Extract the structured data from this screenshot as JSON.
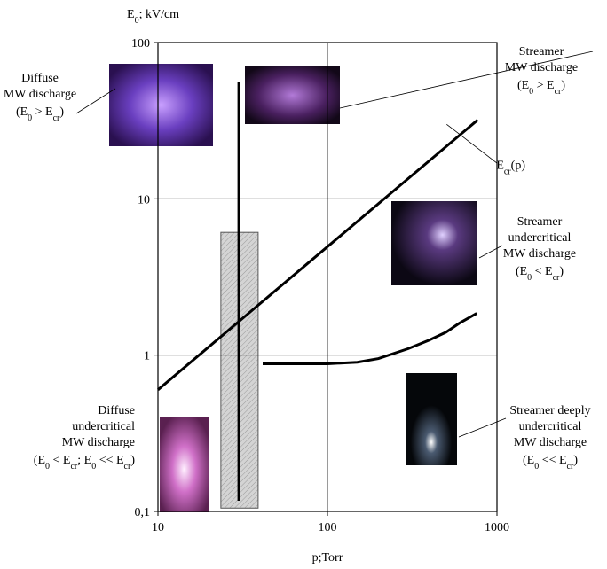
{
  "chart_data": {
    "type": "line",
    "y_label": [
      "E",
      "0",
      "; kV/cm"
    ],
    "x_label": "p;Torr",
    "log_x": true,
    "log_y": true,
    "grid": true,
    "xlim": [
      10,
      1000
    ],
    "ylim": [
      0.1,
      100
    ],
    "xticks": [
      10,
      100,
      1000
    ],
    "yticks": [
      {
        "value": 0.1,
        "label": "0,1"
      },
      1,
      10,
      100
    ],
    "series": [
      {
        "name": [
          "E",
          "cr",
          "(p)"
        ],
        "color": "#000000",
        "x": [
          10,
          770
        ],
        "values": [
          0.6,
          32
        ]
      },
      {
        "color": "#000000",
        "x": [
          30,
          30
        ],
        "values": [
          0.117,
          56
        ]
      },
      {
        "color": "#000000",
        "x": [
          41.5,
          60,
          100,
          150,
          200,
          300,
          400,
          500,
          600,
          760
        ],
        "values": [
          0.88,
          0.88,
          0.88,
          0.9,
          0.95,
          1.1,
          1.25,
          1.4,
          1.6,
          1.85
        ]
      }
    ],
    "shaded_box": {
      "color": "#cfcfcf",
      "x": [
        23.5,
        39
      ],
      "y": [
        0.105,
        6.1
      ]
    },
    "annotations": [
      {
        "lines": [
          [
            "Diffuse"
          ],
          [
            "MW discharge"
          ],
          [
            "(E",
            "0",
            " > E",
            "cr",
            ")"
          ]
        ]
      },
      {
        "lines": [
          [
            "Streamer"
          ],
          [
            "MW discharge"
          ],
          [
            "(E",
            "0",
            " > E",
            "cr",
            ")"
          ]
        ]
      },
      {
        "lines": [
          [
            "Streamer"
          ],
          [
            "undercritical"
          ],
          [
            "MW discharge"
          ],
          [
            "(E",
            "0",
            " < E",
            "cr",
            ")"
          ]
        ]
      },
      {
        "lines": [
          [
            "Streamer deeply"
          ],
          [
            "undercritical"
          ],
          [
            "MW discharge"
          ],
          [
            "(E",
            "0",
            " << E",
            "cr",
            ")"
          ]
        ]
      },
      {
        "lines": [
          [
            "Diffuse"
          ],
          [
            "undercritical"
          ],
          [
            "MW discharge"
          ],
          [
            "(E",
            "0",
            " < E",
            "cr",
            "; E",
            "0",
            " << E",
            "cr",
            ")"
          ]
        ]
      }
    ]
  }
}
